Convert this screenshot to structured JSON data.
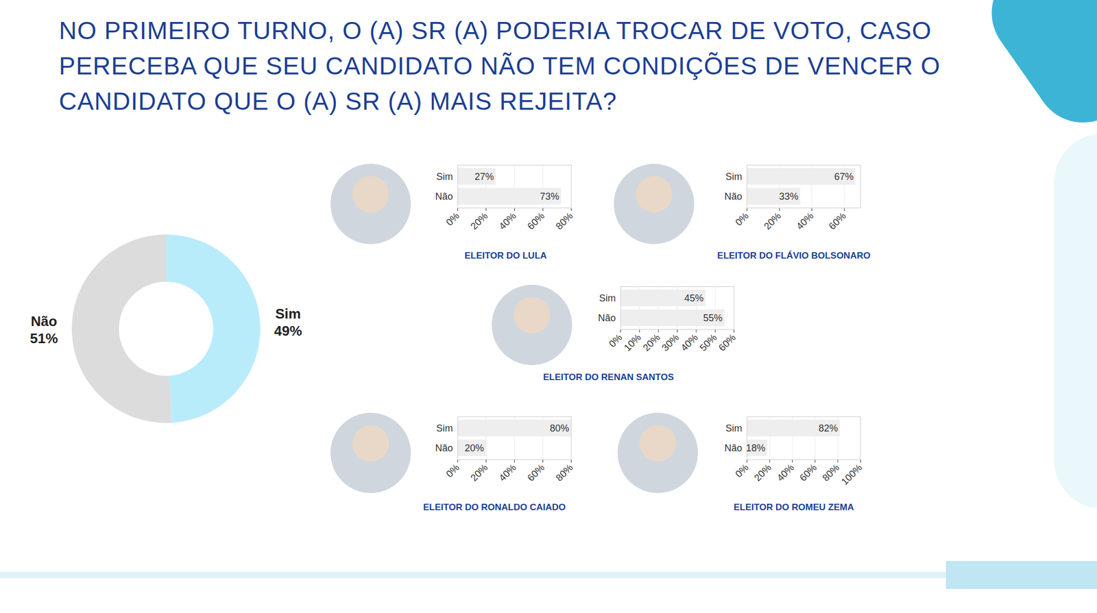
{
  "title": "NO PRIMEIRO TURNO, O (A) SR (A) PODERIA TROCAR DE VOTO, CASO PERECEBA QUE SEU CANDIDATO NÃO TEM CONDIÇÕES DE VENCER O CANDIDATO QUE O (A) SR (A) MAIS REJEITA?",
  "chart_data": [
    {
      "type": "donut",
      "categories": [
        "Sim",
        "Não"
      ],
      "values": [
        49,
        51
      ],
      "value_labels": [
        "49%",
        "51%"
      ],
      "colors": [
        "#b9ecfb",
        "#dcdcdc"
      ],
      "data_labels": true
    },
    {
      "type": "bar",
      "orientation": "horizontal",
      "title": "ELEITOR DO LULA",
      "categories": [
        "Sim",
        "Não"
      ],
      "values": [
        27,
        73
      ],
      "value_labels": [
        "27%",
        "73%"
      ],
      "data_labels": true,
      "color": "#eeeeee",
      "grid": true,
      "xlim": [
        0,
        80
      ],
      "xticks": [
        {
          "value": 0,
          "label": "0%"
        },
        {
          "value": 20,
          "label": "20%"
        },
        {
          "value": 40,
          "label": "40%"
        },
        {
          "value": 60,
          "label": "60%"
        },
        {
          "value": 80,
          "label": "80%"
        }
      ]
    },
    {
      "type": "bar",
      "orientation": "horizontal",
      "title": "ELEITOR DO FLÁVIO BOLSONARO",
      "categories": [
        "Sim",
        "Não"
      ],
      "values": [
        67,
        33
      ],
      "value_labels": [
        "67%",
        "33%"
      ],
      "data_labels": true,
      "color": "#eeeeee",
      "grid": true,
      "xlim": [
        0,
        70
      ],
      "xticks": [
        {
          "value": 0,
          "label": "0%"
        },
        {
          "value": 20,
          "label": "20%"
        },
        {
          "value": 40,
          "label": "40%"
        },
        {
          "value": 60,
          "label": "60%"
        }
      ]
    },
    {
      "type": "bar",
      "orientation": "horizontal",
      "title": "ELEITOR DO RENAN SANTOS",
      "categories": [
        "Sim",
        "Não"
      ],
      "values": [
        45,
        55
      ],
      "value_labels": [
        "45%",
        "55%"
      ],
      "data_labels": true,
      "color": "#eeeeee",
      "grid": true,
      "xlim": [
        0,
        60
      ],
      "xticks": [
        {
          "value": 0,
          "label": "0%"
        },
        {
          "value": 10,
          "label": "10%"
        },
        {
          "value": 20,
          "label": "20%"
        },
        {
          "value": 30,
          "label": "30%"
        },
        {
          "value": 40,
          "label": "40%"
        },
        {
          "value": 50,
          "label": "50%"
        },
        {
          "value": 60,
          "label": "60%"
        }
      ]
    },
    {
      "type": "bar",
      "orientation": "horizontal",
      "title": "ELEITOR DO RONALDO CAIADO",
      "categories": [
        "Sim",
        "Não"
      ],
      "values": [
        80,
        20
      ],
      "value_labels": [
        "80%",
        "20%"
      ],
      "data_labels": true,
      "color": "#eeeeee",
      "grid": true,
      "xlim": [
        0,
        80
      ],
      "xticks": [
        {
          "value": 0,
          "label": "0%"
        },
        {
          "value": 20,
          "label": "20%"
        },
        {
          "value": 40,
          "label": "40%"
        },
        {
          "value": 60,
          "label": "60%"
        },
        {
          "value": 80,
          "label": "80%"
        }
      ]
    },
    {
      "type": "bar",
      "orientation": "horizontal",
      "title": "ELEITOR DO ROMEU ZEMA",
      "categories": [
        "Sim",
        "Não"
      ],
      "values": [
        82,
        18
      ],
      "value_labels": [
        "82%",
        "18%"
      ],
      "data_labels": true,
      "color": "#eeeeee",
      "grid": true,
      "xlim": [
        0,
        100
      ],
      "xticks": [
        {
          "value": 0,
          "label": "0%"
        },
        {
          "value": 20,
          "label": "20%"
        },
        {
          "value": 40,
          "label": "40%"
        },
        {
          "value": 60,
          "label": "60%"
        },
        {
          "value": 80,
          "label": "80%"
        },
        {
          "value": 100,
          "label": "100%"
        }
      ]
    }
  ]
}
